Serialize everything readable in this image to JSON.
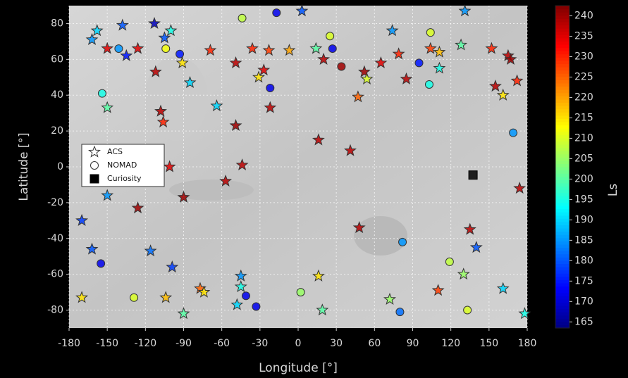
{
  "chart_data": {
    "type": "scatter",
    "x_label": "Longitude [°]",
    "y_label": "Latitude [°]",
    "colorbar_label": "Ls",
    "xlim": [
      -180,
      180
    ],
    "xticks": [
      -180,
      -150,
      -120,
      -90,
      -60,
      -30,
      0,
      30,
      60,
      90,
      120,
      150,
      180
    ],
    "ylim": [
      -90,
      90
    ],
    "yticks": [
      -80,
      -60,
      -40,
      -20,
      0,
      20,
      40,
      60,
      80
    ],
    "clim": [
      163.5,
      242.5
    ],
    "cticks": [
      165,
      170,
      175,
      180,
      185,
      190,
      195,
      200,
      205,
      210,
      215,
      220,
      225,
      230,
      235,
      240
    ],
    "cmap": "jet",
    "grid": true,
    "series": [
      {
        "name": "ACS",
        "marker": "star",
        "x": [
          -158,
          -162,
          -150,
          -138,
          -135,
          -113,
          -105,
          -100,
          -126,
          -112,
          -91,
          -85,
          -150,
          -108,
          -106,
          -101,
          -69,
          -64,
          -49,
          -49,
          -57,
          -44,
          -36,
          -31,
          -27,
          -23,
          -22,
          -7,
          3,
          14,
          20,
          16,
          41,
          47,
          52,
          54,
          48,
          65,
          74,
          79,
          85,
          104,
          111,
          111,
          128,
          131,
          152,
          155,
          161,
          165,
          167,
          172,
          174,
          135,
          140,
          130,
          110,
          72,
          19,
          16,
          -45,
          -45,
          -48,
          -77,
          -74,
          -104,
          -90,
          -99,
          -116,
          -126,
          -150,
          -162,
          -170,
          -170,
          -90,
          161,
          178
        ],
        "y": [
          76,
          71,
          66,
          79,
          62,
          80,
          72,
          76,
          66,
          53,
          58,
          47,
          33,
          31,
          25,
          0,
          65,
          34,
          58,
          23,
          -8,
          1,
          66,
          50,
          54,
          65,
          33,
          65,
          87,
          66,
          60,
          15,
          9,
          39,
          53,
          49,
          -34,
          58,
          76,
          63,
          49,
          66,
          64,
          55,
          68,
          87,
          66,
          45,
          40,
          62,
          60,
          48,
          -12,
          -35,
          -45,
          -60,
          -69,
          -74,
          -80,
          -61,
          -61,
          -67,
          -77,
          -68,
          -70,
          -73,
          -82,
          -56,
          -47,
          -23,
          -16,
          -46,
          -30,
          -73,
          -17,
          -68,
          -82
        ],
        "ls": [
          190,
          185,
          235,
          180,
          175,
          168,
          180,
          195,
          235,
          238,
          215,
          190,
          200,
          238,
          230,
          235,
          230,
          190,
          238,
          240,
          238,
          238,
          230,
          215,
          235,
          228,
          238,
          220,
          180,
          200,
          238,
          238,
          238,
          225,
          240,
          210,
          238,
          235,
          185,
          230,
          238,
          228,
          218,
          195,
          200,
          185,
          230,
          238,
          215,
          238,
          240,
          230,
          238,
          238,
          180,
          205,
          228,
          205,
          200,
          215,
          185,
          195,
          190,
          225,
          215,
          218,
          200,
          178,
          182,
          240,
          185,
          180,
          178,
          215,
          240,
          190,
          195
        ]
      },
      {
        "name": "NOMAD",
        "marker": "circle",
        "x": [
          -44,
          -17,
          25,
          27,
          34,
          104,
          95,
          103,
          -141,
          -104,
          -93,
          -154,
          -22,
          169,
          82,
          119,
          133,
          80,
          2,
          -41,
          -33,
          -129,
          -155
        ],
        "y": [
          83,
          86,
          73,
          66,
          56,
          75,
          58,
          46,
          66,
          66,
          63,
          41,
          44,
          19,
          -42,
          -53,
          -80,
          -81,
          -70,
          -72,
          -78,
          -73,
          -54
        ],
        "ls": [
          208,
          172,
          210,
          172,
          240,
          210,
          175,
          195,
          185,
          212,
          175,
          195,
          172,
          185,
          185,
          208,
          210,
          182,
          205,
          172,
          172,
          210,
          172
        ]
      },
      {
        "name": "Curiosity",
        "marker": "square",
        "color": "#000000",
        "x": [
          137.4
        ],
        "y": [
          -4.6
        ]
      }
    ]
  }
}
